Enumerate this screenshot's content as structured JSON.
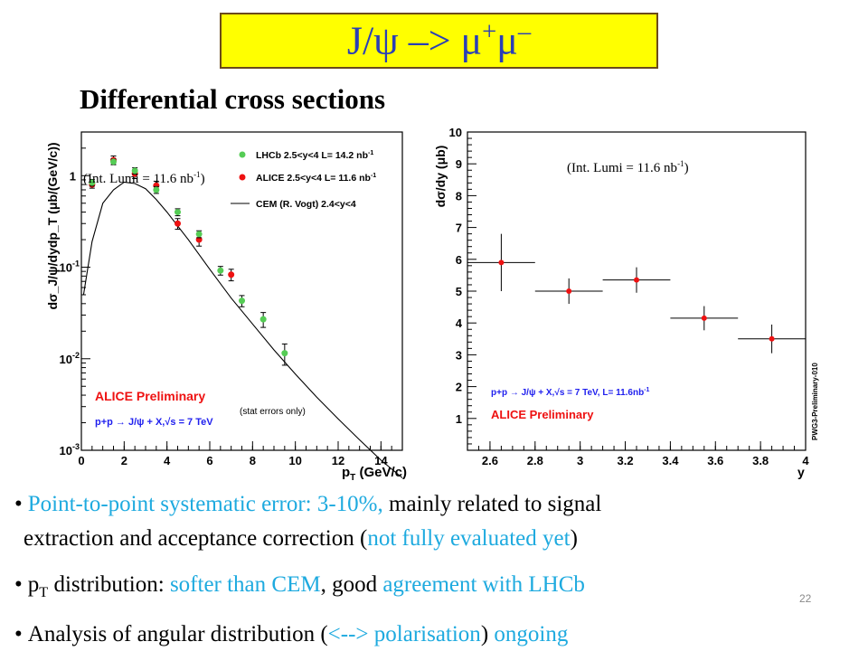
{
  "slide": {
    "title_main": "J/ψ –> μ",
    "title_plus": "+",
    "title_mu2": "μ",
    "title_minus": "–",
    "subtitle": "Differential cross sections",
    "page_number": "22"
  },
  "bullets": [
    {
      "dot": "•",
      "cyan_text": "Point-to-point systematic error: 3-10%,",
      "black_text": " mainly related to signal"
    },
    {
      "text_a": "extraction and acceptance correction (",
      "cyan_text": "not fully evaluated yet",
      "text_b": ")"
    },
    {
      "dot": "•",
      "p": "p",
      "sub": "T",
      "text_a": " distribution: ",
      "cyan_a": "softer than CEM",
      "text_b": ", good ",
      "cyan_b": "agreement with LHCb"
    },
    {
      "dot": "•",
      "text_a": "Analysis of angular distribution (",
      "cyan_a": "<--> polarisation",
      "text_b": ") ",
      "cyan_b": "ongoing"
    }
  ],
  "colors": {
    "title_bg": "#ffff00",
    "title_text": "#2a3fb6",
    "highlight_text": "#1eaadf",
    "alice_red": "#ee1111",
    "lhcb_green": "#55cc55",
    "label_blue": "#1f1fee"
  },
  "chart_data": [
    {
      "type": "scatter",
      "name": "pT differential cross section",
      "xlabel": "p",
      "xlabel_sub": "T",
      "xlabel_unit": " (GeV/c)",
      "ylabel": "dσ_J/ψ/dydp_T (μb/(GeV/c))",
      "xlim": [
        0,
        15
      ],
      "ylim": [
        0.001,
        3
      ],
      "yscale": "log",
      "x_ticks": [
        0,
        2,
        4,
        6,
        8,
        10,
        12,
        14
      ],
      "y_tick_labels": [
        {
          "value": 1,
          "label": "1"
        },
        {
          "value": 0.1,
          "label": "10",
          "exp": "-1"
        },
        {
          "value": 0.01,
          "label": "10",
          "exp": "-2"
        },
        {
          "value": 0.001,
          "label": "10",
          "exp": "-3"
        }
      ],
      "lumi_note": "(Int. Lumi = 11.6 nb",
      "lumi_exp": "-1",
      "lumi_close": ")",
      "legend": [
        {
          "marker": "lhcb",
          "text": "LHCb 2.5<y<4 L= 14.2 nb",
          "exp": "-1"
        },
        {
          "marker": "alice",
          "text": "ALICE 2.5<y<4 L= 11.6 nb",
          "exp": "-1"
        },
        {
          "marker": "line",
          "text": "CEM (R. Vogt) 2.4<y<4",
          "exp": ""
        }
      ],
      "preliminary_label": "ALICE Preliminary",
      "system_label": "p+p → J/ψ + X,√s = 7 TeV",
      "stat_note": "(stat errors  only)",
      "series": [
        {
          "name": "LHCb 2.5<y<4 L= 14.2 nb-1",
          "points": [
            {
              "x": 0.5,
              "y": 0.84,
              "err": 0.07
            },
            {
              "x": 1.5,
              "y": 1.42,
              "err": 0.1
            },
            {
              "x": 2.5,
              "y": 1.13,
              "err": 0.09
            },
            {
              "x": 3.5,
              "y": 0.7,
              "err": 0.06
            },
            {
              "x": 4.5,
              "y": 0.4,
              "err": 0.035
            },
            {
              "x": 5.5,
              "y": 0.23,
              "err": 0.02
            },
            {
              "x": 6.5,
              "y": 0.092,
              "err": 0.01
            },
            {
              "x": 7.5,
              "y": 0.043,
              "err": 0.006
            },
            {
              "x": 8.5,
              "y": 0.027,
              "err": 0.005
            },
            {
              "x": 9.5,
              "y": 0.0115,
              "err": 0.003
            }
          ]
        },
        {
          "name": "ALICE 2.5<y<4 L= 11.6 nb-1",
          "points": [
            {
              "x": 0.5,
              "y": 0.8,
              "err": 0.07
            },
            {
              "x": 1.5,
              "y": 1.48,
              "err": 0.16
            },
            {
              "x": 2.5,
              "y": 1.05,
              "err": 0.12
            },
            {
              "x": 3.5,
              "y": 0.78,
              "err": 0.09
            },
            {
              "x": 4.5,
              "y": 0.3,
              "err": 0.04
            },
            {
              "x": 5.5,
              "y": 0.2,
              "err": 0.03
            },
            {
              "x": 7.0,
              "y": 0.083,
              "err": 0.012
            }
          ]
        },
        {
          "name": "CEM (R. Vogt) 2.4<y<4",
          "curve": [
            {
              "x": 0.1,
              "y": 0.05
            },
            {
              "x": 0.5,
              "y": 0.19
            },
            {
              "x": 1.0,
              "y": 0.5
            },
            {
              "x": 1.5,
              "y": 0.7
            },
            {
              "x": 2.0,
              "y": 0.85
            },
            {
              "x": 2.5,
              "y": 0.82
            },
            {
              "x": 3.0,
              "y": 0.72
            },
            {
              "x": 3.5,
              "y": 0.55
            },
            {
              "x": 4.0,
              "y": 0.4
            },
            {
              "x": 5.0,
              "y": 0.2
            },
            {
              "x": 6.0,
              "y": 0.095
            },
            {
              "x": 7.0,
              "y": 0.046
            },
            {
              "x": 8.0,
              "y": 0.024
            },
            {
              "x": 9.0,
              "y": 0.0125
            },
            {
              "x": 10.0,
              "y": 0.0068
            },
            {
              "x": 11.0,
              "y": 0.0038
            },
            {
              "x": 12.0,
              "y": 0.0022
            },
            {
              "x": 13.0,
              "y": 0.0013
            },
            {
              "x": 14.0,
              "y": 0.00078
            },
            {
              "x": 15.0,
              "y": 0.0005
            }
          ]
        }
      ]
    },
    {
      "type": "scatter",
      "name": "rapidity differential cross section",
      "xlabel": "y",
      "ylabel": "dσ/dy (μb)",
      "xlim": [
        2.5,
        4.0
      ],
      "ylim": [
        0,
        10
      ],
      "x_ticks": [
        2.6,
        2.8,
        3,
        3.2,
        3.4,
        3.6,
        3.8,
        4
      ],
      "y_ticks": [
        1,
        2,
        3,
        4,
        5,
        6,
        7,
        8,
        9,
        10
      ],
      "lumi_note": "(Int. Lumi = 11.6 nb",
      "lumi_exp": "-1",
      "lumi_close": ")",
      "system_label": "p+p → J/ψ + X,√s = 7 TeV, L= 11.6nb",
      "system_exp": "-1",
      "preliminary_label": "ALICE Preliminary",
      "side_label": "PWG3-Preliminary-010",
      "series": [
        {
          "name": "ALICE",
          "points": [
            {
              "x": 2.65,
              "xlo": 2.5,
              "xhi": 2.8,
              "y": 5.9,
              "err": 0.9
            },
            {
              "x": 2.95,
              "xlo": 2.8,
              "xhi": 3.1,
              "y": 5.0,
              "err": 0.4
            },
            {
              "x": 3.25,
              "xlo": 3.1,
              "xhi": 3.4,
              "y": 5.35,
              "err": 0.4
            },
            {
              "x": 3.55,
              "xlo": 3.4,
              "xhi": 3.7,
              "y": 4.15,
              "err": 0.38
            },
            {
              "x": 3.85,
              "xlo": 3.7,
              "xhi": 4.0,
              "y": 3.5,
              "err": 0.45
            }
          ]
        }
      ]
    }
  ]
}
